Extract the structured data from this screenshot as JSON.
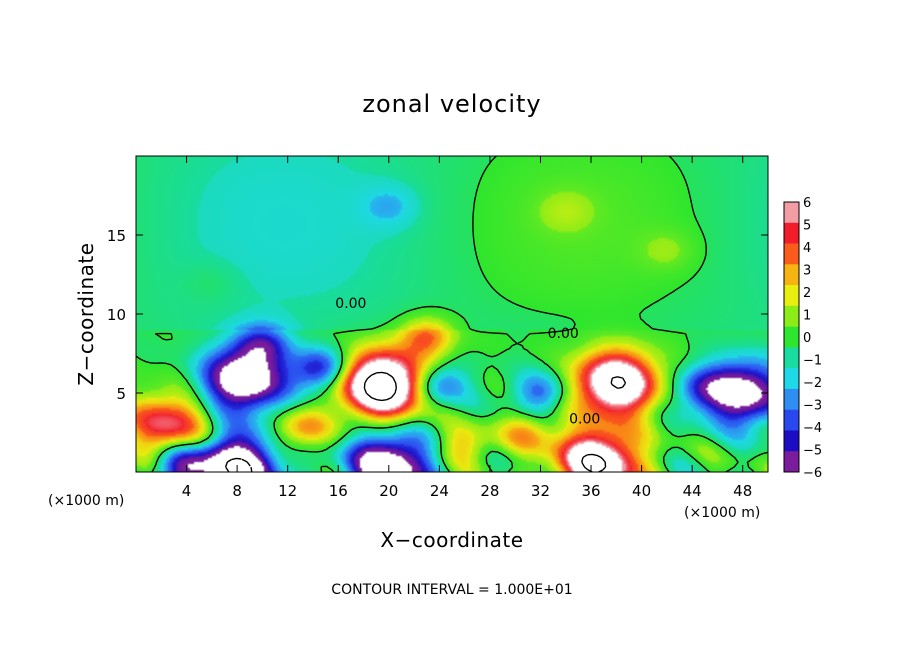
{
  "chart_data": {
    "type": "heatmap",
    "title": "zonal velocity",
    "xlabel": "X−coordinate",
    "ylabel": "Z−coordinate",
    "x_unit_label": "(×1000 m)",
    "xlim": [
      0,
      50
    ],
    "ylim": [
      0,
      20
    ],
    "x_ticks": [
      4,
      8,
      12,
      16,
      20,
      24,
      28,
      32,
      36,
      40,
      44,
      48
    ],
    "y_ticks": [
      5,
      10,
      15
    ],
    "colorbar": {
      "ticks": [
        "6",
        "5",
        "4",
        "3",
        "2",
        "1",
        "0",
        "−1",
        "−2",
        "−3",
        "−4",
        "−5",
        "−6"
      ],
      "range": [
        -6,
        6
      ]
    },
    "contour_labels": [
      {
        "text": "0.00",
        "x": 17,
        "y": 10.5
      },
      {
        "text": "0.00",
        "x": 33.8,
        "y": 8.6
      },
      {
        "text": "0.00",
        "x": 35.5,
        "y": 3.2
      }
    ],
    "features": [
      {
        "type": "max",
        "x": 19.5,
        "y": 5.5,
        "value": 12
      },
      {
        "type": "min",
        "x": 8.5,
        "y": 5.8,
        "value": -9
      },
      {
        "type": "max",
        "x": 38,
        "y": 5.6,
        "value": 10
      },
      {
        "type": "min",
        "x": 48,
        "y": 5.0,
        "value": -8
      },
      {
        "type": "max",
        "x": 2.5,
        "y": 3.0,
        "value": 6
      },
      {
        "type": "min",
        "x": 8,
        "y": 0.3,
        "value": -10
      },
      {
        "type": "min",
        "x": 20,
        "y": 0.4,
        "value": -9
      },
      {
        "type": "max",
        "x": 36.5,
        "y": 0.6,
        "value": 10
      },
      {
        "type": "min",
        "x": 3.5,
        "y": 0.3,
        "value": -5
      },
      {
        "type": "max",
        "x": 23,
        "y": 8.5,
        "value": 4
      },
      {
        "type": "min",
        "x": 24,
        "y": 5.5,
        "value": -4
      },
      {
        "type": "min",
        "x": 32,
        "y": 5.0,
        "value": -3.5
      },
      {
        "type": "max",
        "x": 26,
        "y": 1.7,
        "value": 3
      },
      {
        "type": "max",
        "x": 13,
        "y": 2.6,
        "value": 4
      },
      {
        "type": "max",
        "x": 31,
        "y": 2.5,
        "value": 3
      },
      {
        "type": "max",
        "x": 10,
        "y": 8.1,
        "value": -4
      },
      {
        "type": "min",
        "x": 44.5,
        "y": 5.2,
        "value": -3
      },
      {
        "type": "min",
        "x": 14.5,
        "y": 6.5,
        "value": -5
      },
      {
        "type": "min",
        "x": 20,
        "y": 16.8,
        "value": -1.6
      },
      {
        "type": "max",
        "x": 34,
        "y": 16.5,
        "value": 1.2
      },
      {
        "type": "max",
        "x": 42,
        "y": 14,
        "value": 1.1
      },
      {
        "type": "max",
        "x": 6,
        "y": 12,
        "value": 0.6
      }
    ]
  },
  "footer": {
    "contour_interval": "CONTOUR INTERVAL = 1.000E+01"
  }
}
